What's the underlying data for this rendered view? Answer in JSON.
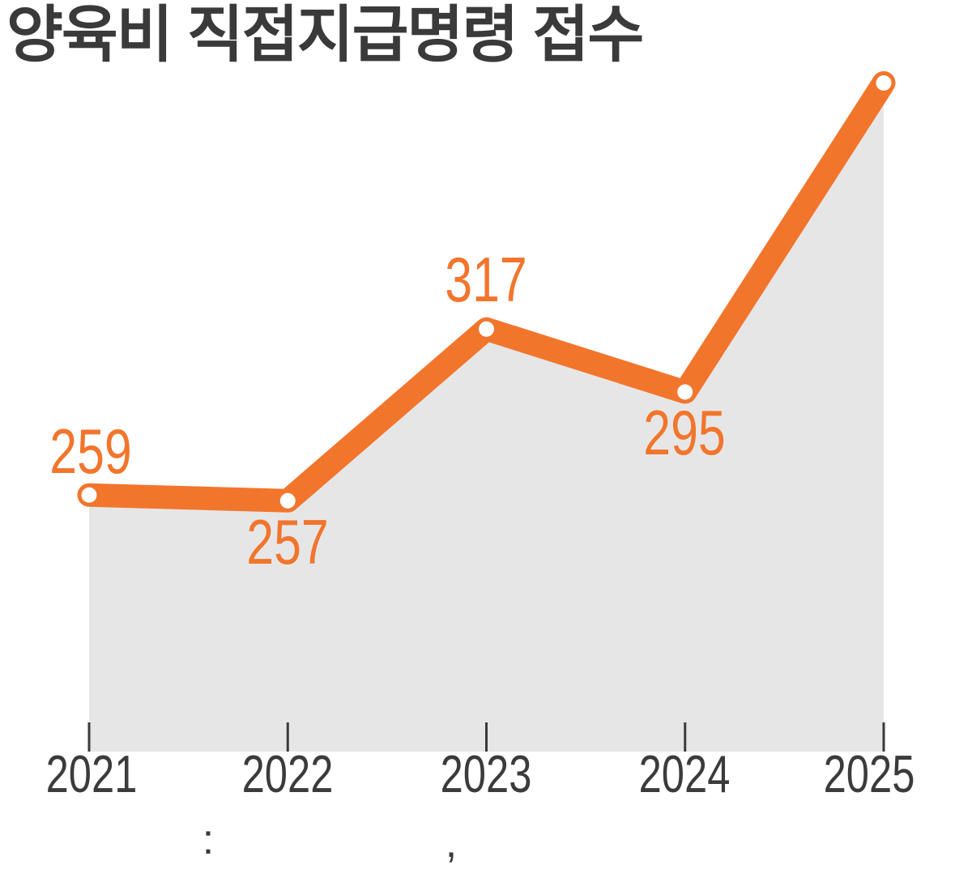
{
  "title": "양육비 직접지급명령 접수",
  "chart_data": {
    "type": "line",
    "x": [
      "2021",
      "2022",
      "2023",
      "2024",
      "2025"
    ],
    "values": [
      259,
      257,
      317,
      295,
      403
    ],
    "value_labels": [
      "259",
      "257",
      "317",
      "295",
      ""
    ],
    "last_value_estimated_from_pixels": true,
    "line_color": "#f2752c",
    "area_color": "#e6e6e7",
    "marker_color": "#ffffff",
    "tick_color": "#3a3a3a",
    "grid": false,
    "legend": false
  },
  "caption": {
    "visible_glyphs": [
      ":",
      ","
    ]
  }
}
